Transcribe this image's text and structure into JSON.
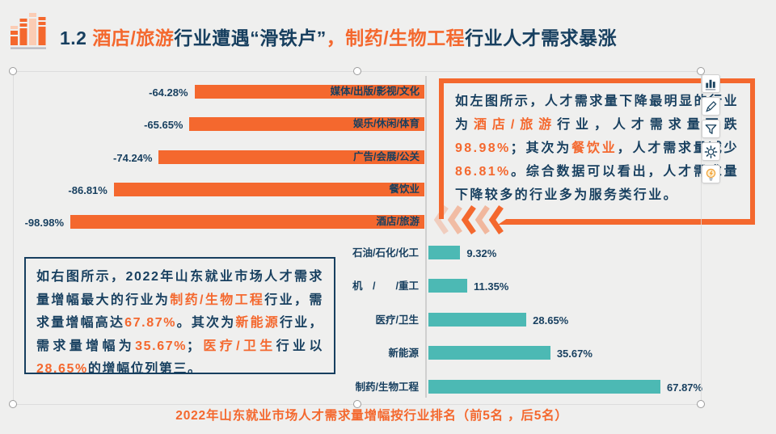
{
  "colors": {
    "accent_orange": "#f4682e",
    "teal": "#4cb9b4",
    "navy": "#173f5f",
    "background": "#efefee"
  },
  "title": {
    "segments": [
      {
        "t": "1.2 "
      },
      {
        "t": "酒店/旅游",
        "o": true
      },
      {
        "t": "行业遭遇“滑铁卢”"
      },
      {
        "t": "，制药/生物工程",
        "o": true
      },
      {
        "t": "行业人才需求暴涨"
      }
    ]
  },
  "chart_data": [
    {
      "type": "bar",
      "orientation": "horizontal",
      "direction": "bars-extend-left",
      "bar_color": "#f4682e",
      "categories": [
        "媒体/出版/影视/文化",
        "娱乐/休闲/体育",
        "广告/会展/公关",
        "餐饮业",
        "酒店/旅游"
      ],
      "values": [
        -64.28,
        -65.65,
        -74.24,
        -86.81,
        -98.98
      ],
      "value_labels": [
        "-64.28%",
        "-65.65%",
        "-74.24%",
        "-86.81%",
        "-98.98%"
      ],
      "title": "",
      "xlabel": "",
      "ylabel": "",
      "xlim": [
        -100,
        0
      ],
      "grid": false
    },
    {
      "type": "bar",
      "orientation": "horizontal",
      "direction": "bars-extend-right",
      "bar_color": "#4cb9b4",
      "categories": [
        "石油/石化/化工",
        "机　/　　/重工",
        "医疗/卫生",
        "新能源",
        "制药/生物工程"
      ],
      "values": [
        9.32,
        11.35,
        28.65,
        35.67,
        67.87
      ],
      "value_labels": [
        "9.32%",
        "11.35%",
        "28.65%",
        "35.67%",
        "67.87%"
      ],
      "title": "",
      "xlabel": "",
      "ylabel": "",
      "xlim": [
        0,
        70
      ],
      "grid": false
    }
  ],
  "right_note": {
    "segments": [
      {
        "t": "如左图所示，人才需求量下降最明显的行业为"
      },
      {
        "t": "酒店/旅游",
        "o": true
      },
      {
        "t": "行业，人才需求量下跌"
      },
      {
        "t": "98.98%",
        "o": true
      },
      {
        "t": "；其次为"
      },
      {
        "t": "餐饮业",
        "o": true
      },
      {
        "t": "，人才需求量减少"
      },
      {
        "t": "86.81%",
        "o": true
      },
      {
        "t": "。综合数据可以看出，人才需求量下降较多的行业多为服务类行业。"
      }
    ]
  },
  "left_note": {
    "segments": [
      {
        "t": "如右图所示，2022年山东就业市场人才需求量增幅最大的行业为"
      },
      {
        "t": "制药/生物工程",
        "o": true
      },
      {
        "t": "行业，需求量增幅高达"
      },
      {
        "t": "67.87%",
        "o": true
      },
      {
        "t": "。其次为"
      },
      {
        "t": "新能源",
        "o": true
      },
      {
        "t": "行业，需求量增幅为"
      },
      {
        "t": "35.67%",
        "o": true
      },
      {
        "t": "；"
      },
      {
        "t": "医疗/卫生",
        "o": true
      },
      {
        "t": "行业以"
      },
      {
        "t": "28.65%",
        "o": true
      },
      {
        "t": "的增幅位列第三。"
      }
    ]
  },
  "caption": "2022年山东就业市场人才需求量增幅按行业排名（前5名 ，后5名）",
  "toolbar": {
    "icons": [
      "column-chart-icon",
      "pen-icon",
      "filter-icon",
      "gear-icon",
      "lightbulb-icon"
    ]
  }
}
